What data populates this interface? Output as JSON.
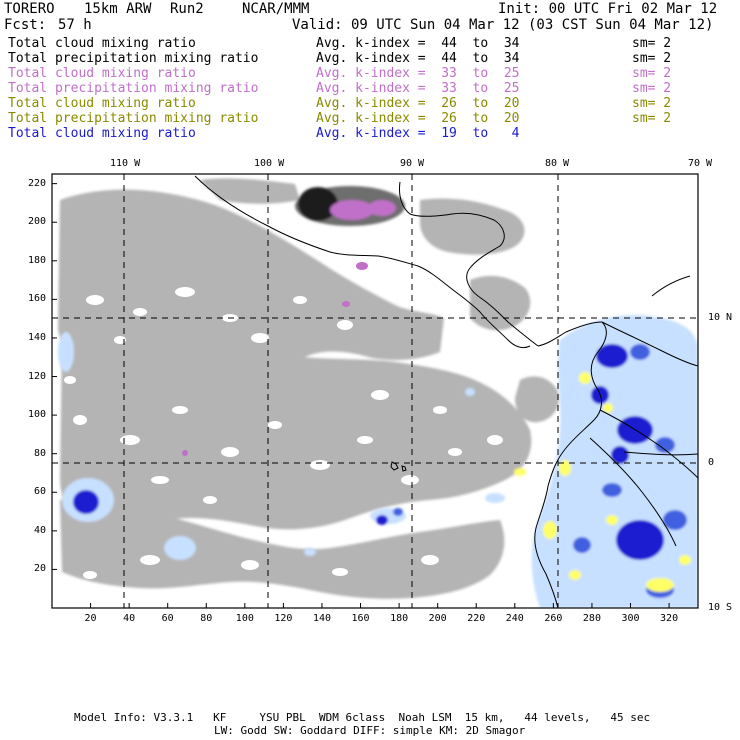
{
  "header": {
    "model": "TORERO",
    "resolution": "15km ARW",
    "run": "Run2",
    "org": "NCAR/MMM",
    "init": "Init: 00 UTC Fri 02 Mar 12",
    "fcst_label": "Fcst:",
    "fcst_value": "57 h",
    "valid": "Valid: 09 UTC Sun 04 Mar 12 (03 CST Sun 04 Mar 12)"
  },
  "legend": [
    {
      "field": "Total cloud mixing ratio",
      "kindex": "Avg. k-index =  44  to  34",
      "sm": "sm= 2",
      "color": "#000000"
    },
    {
      "field": "Total precipitation mixing ratio",
      "kindex": "Avg. k-index =  44  to  34",
      "sm": "sm= 2",
      "color": "#000000"
    },
    {
      "field": "Total cloud mixing ratio",
      "kindex": "Avg. k-index =  33  to  25",
      "sm": "sm= 2",
      "color": "#c070c8"
    },
    {
      "field": "Total precipitation mixing ratio",
      "kindex": "Avg. k-index =  33  to  25",
      "sm": "sm= 2",
      "color": "#c070c8"
    },
    {
      "field": "Total cloud mixing ratio",
      "kindex": "Avg. k-index =  26  to  20",
      "sm": "sm= 2",
      "color": "#8a8a00"
    },
    {
      "field": "Total precipitation mixing ratio",
      "kindex": "Avg. k-index =  26  to  20",
      "sm": "sm= 2",
      "color": "#8a8a00"
    },
    {
      "field": "Total cloud mixing ratio",
      "kindex": "Avg. k-index =  19  to   4",
      "sm": "",
      "color": "#1a1ad0"
    }
  ],
  "axes": {
    "lon_labels": [
      "110 W",
      "100 W",
      "90 W",
      "80 W",
      "70 W"
    ],
    "lat_labels": [
      "10 N",
      "0",
      "10 S"
    ],
    "y_ticks": [
      "220",
      "200",
      "180",
      "160",
      "140",
      "120",
      "100",
      "80",
      "60",
      "40",
      "20"
    ],
    "x_ticks": [
      "20",
      "40",
      "60",
      "80",
      "100",
      "120",
      "140",
      "160",
      "180",
      "200",
      "220",
      "240",
      "260",
      "280",
      "300",
      "320"
    ]
  },
  "footer": {
    "line1": "Model Info: V3.3.1   KF     YSU PBL  WDM 6class  Noah LSM  15 km,   44 levels,   45 sec",
    "line2": "LW: Godd SW: Goddard DIFF: simple KM: 2D Smagor"
  },
  "colors": {
    "cloud_gray": "#b4b4b4",
    "purple": "#c070c8",
    "yellow": "#ffff66",
    "blue_dark": "#1a1ad0",
    "blue_light": "#c8e0ff"
  }
}
